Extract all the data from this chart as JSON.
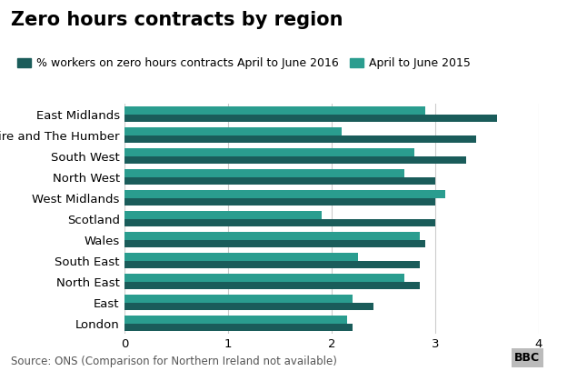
{
  "title": "Zero hours contracts by region",
  "legend_2016": "% workers on zero hours contracts April to June 2016",
  "legend_2015": "April to June 2015",
  "source": "Source: ONS (Comparison for Northern Ireland not available)",
  "regions": [
    "East Midlands",
    "Yorkshire and The Humber",
    "South West",
    "North West",
    "West Midlands",
    "Scotland",
    "Wales",
    "South East",
    "North East",
    "East",
    "London"
  ],
  "values_2016": [
    3.6,
    3.4,
    3.3,
    3.0,
    3.0,
    3.0,
    2.9,
    2.85,
    2.85,
    2.4,
    2.2
  ],
  "values_2015": [
    2.9,
    2.1,
    2.8,
    2.7,
    3.1,
    1.9,
    2.85,
    2.25,
    2.7,
    2.2,
    2.15
  ],
  "color_2016": "#1a5c5a",
  "color_2015": "#2a9d8f",
  "xlim": [
    0,
    4
  ],
  "xticks": [
    0,
    1,
    2,
    3,
    4
  ],
  "background_color": "#ffffff",
  "title_fontsize": 15,
  "legend_fontsize": 9,
  "label_fontsize": 9.5,
  "tick_fontsize": 9.5,
  "source_fontsize": 8.5,
  "bbc_box_color": "#bbbbbb",
  "bbc_text_color": "#000000"
}
